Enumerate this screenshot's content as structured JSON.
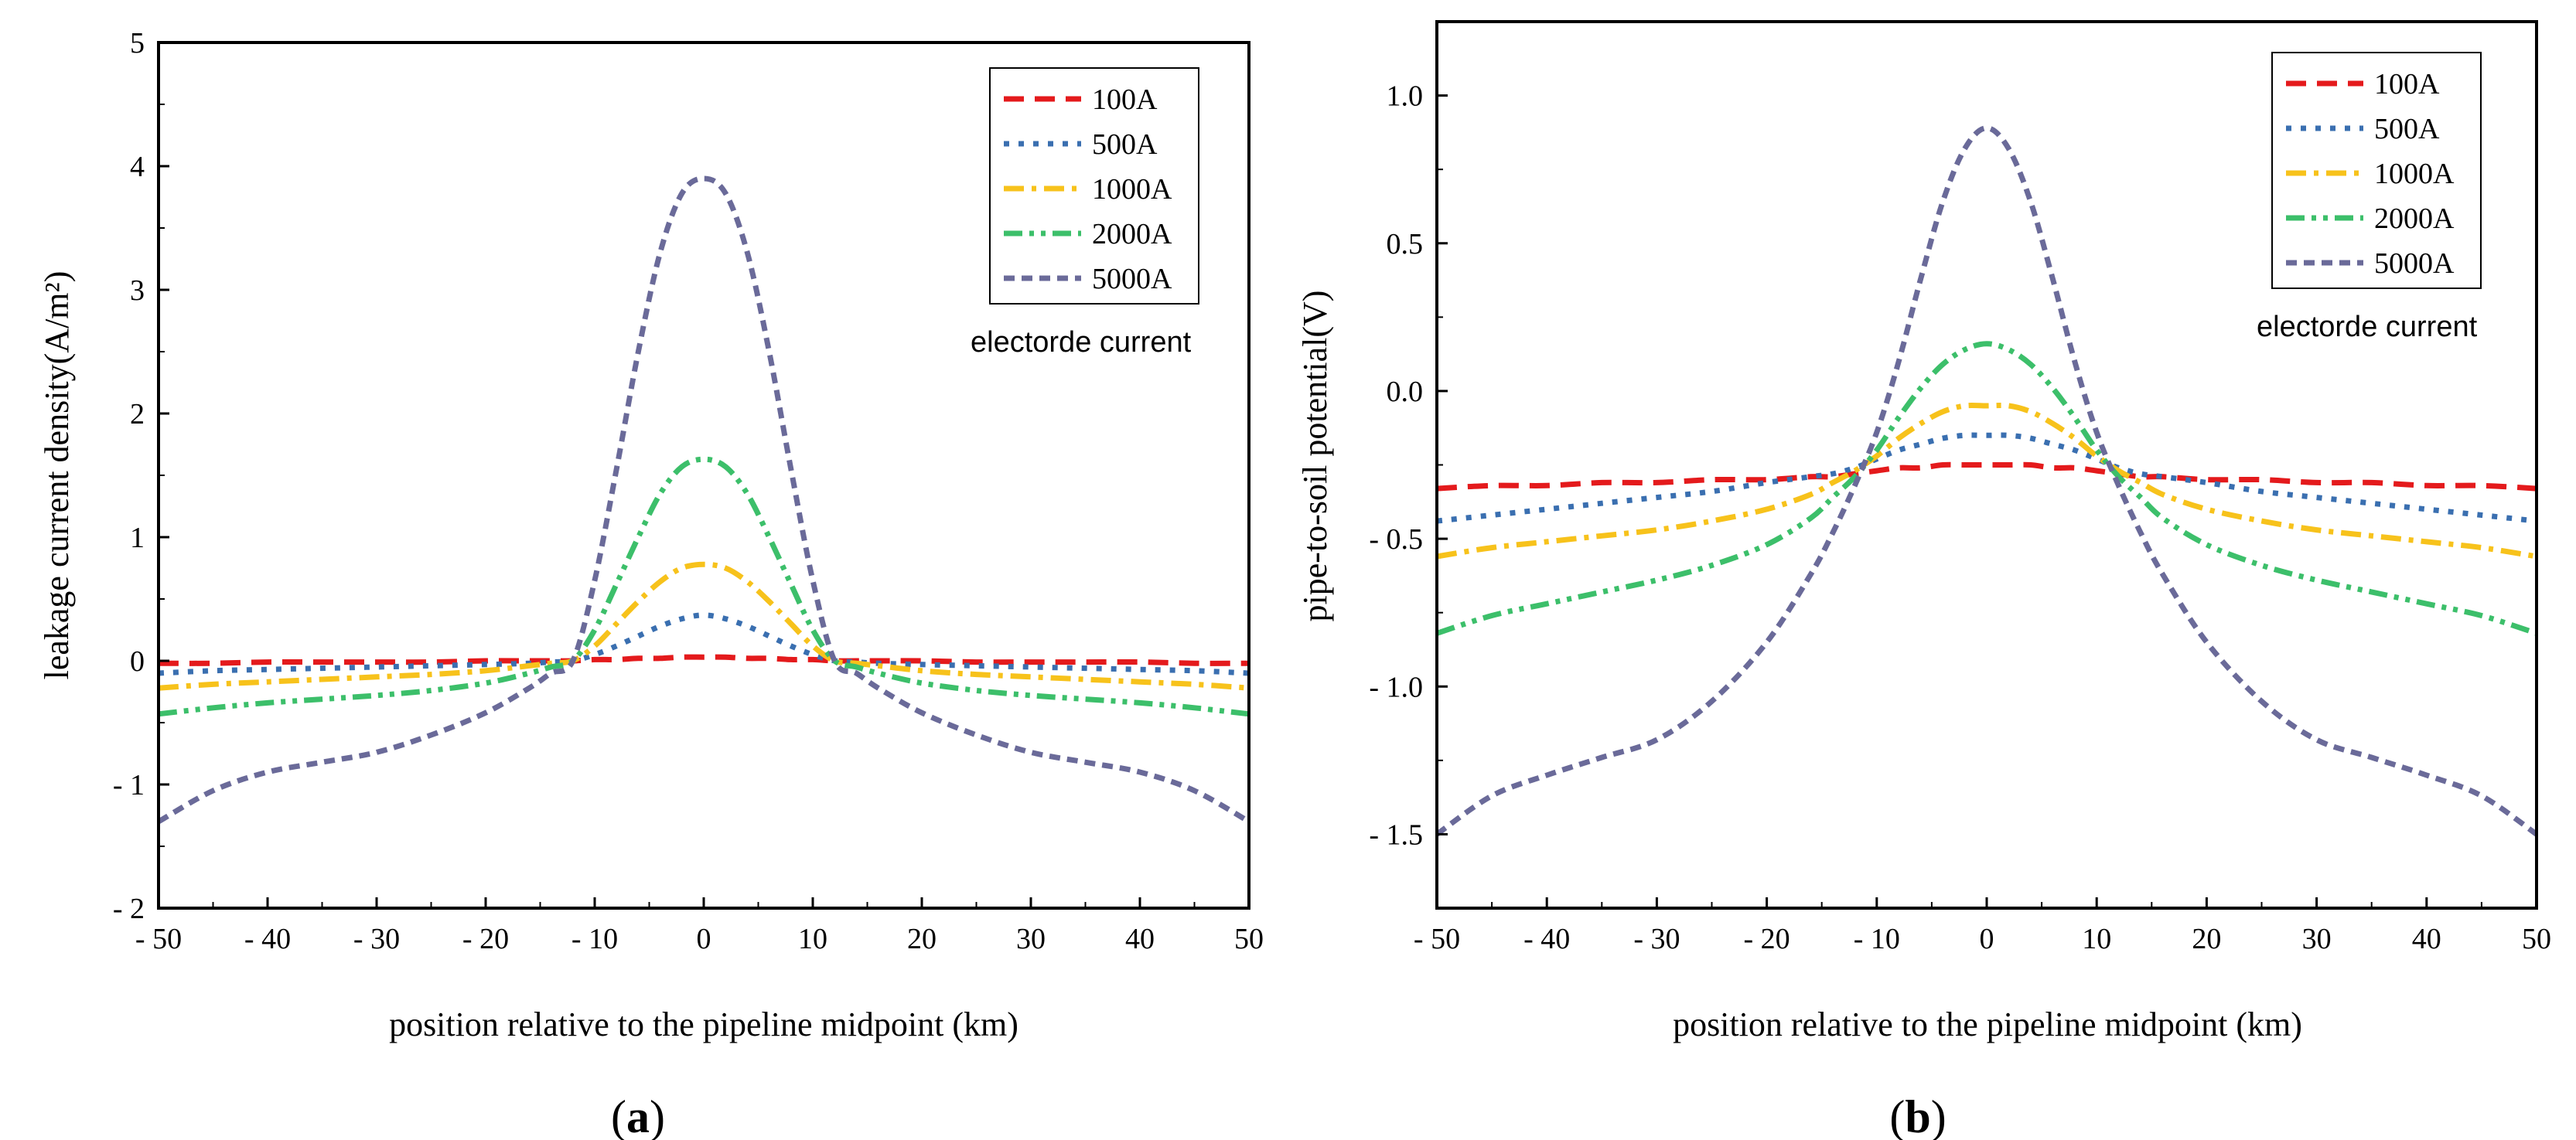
{
  "chart_data": [
    {
      "type": "line",
      "panel_label": "a",
      "xlabel": "position relative to the pipeline midpoint (km)",
      "ylabel": "leakage current density(A/m²)",
      "xlim": [
        -50,
        50
      ],
      "ylim": [
        -2,
        5
      ],
      "xticks": [
        -50,
        -40,
        -30,
        -20,
        -10,
        0,
        10,
        20,
        30,
        40,
        50
      ],
      "xtick_labels": [
        "- 50",
        "- 40",
        "- 30",
        "- 20",
        "- 10",
        "0",
        "10",
        "20",
        "30",
        "40",
        "50"
      ],
      "yticks": [
        -2,
        -1,
        0,
        1,
        2,
        3,
        4,
        5
      ],
      "ytick_labels": [
        "- 2",
        "- 1",
        "0",
        "1",
        "2",
        "3",
        "4",
        "5"
      ],
      "legend_note": "electorde current",
      "x": [
        -50,
        -45,
        -40,
        -35,
        -30,
        -25,
        -20,
        -16,
        -14,
        -12,
        -10,
        -8,
        -6,
        -4,
        -2,
        0,
        2,
        4,
        6,
        8,
        10,
        12,
        14,
        16,
        20,
        25,
        30,
        35,
        40,
        45,
        50
      ],
      "series": [
        {
          "name": "100A",
          "color": "#e41a1c",
          "dash": "dash",
          "values": [
            -0.02,
            -0.02,
            -0.01,
            -0.01,
            -0.01,
            -0.01,
            0.0,
            0.0,
            0.0,
            0.0,
            0.01,
            0.01,
            0.02,
            0.02,
            0.03,
            0.03,
            0.03,
            0.02,
            0.02,
            0.01,
            0.01,
            0.0,
            0.0,
            0.0,
            0.0,
            -0.01,
            -0.01,
            -0.01,
            -0.01,
            -0.02,
            -0.02
          ]
        },
        {
          "name": "500A",
          "color": "#3a6fb0",
          "dash": "dot",
          "values": [
            -0.1,
            -0.08,
            -0.07,
            -0.06,
            -0.05,
            -0.04,
            -0.03,
            -0.02,
            -0.01,
            0.0,
            0.05,
            0.12,
            0.2,
            0.28,
            0.34,
            0.37,
            0.34,
            0.28,
            0.2,
            0.12,
            0.05,
            0.0,
            -0.01,
            -0.02,
            -0.03,
            -0.04,
            -0.05,
            -0.06,
            -0.07,
            -0.08,
            -0.1
          ]
        },
        {
          "name": "1000A",
          "color": "#f7c21b",
          "dash": "dashdot",
          "values": [
            -0.22,
            -0.19,
            -0.17,
            -0.15,
            -0.13,
            -0.11,
            -0.08,
            -0.04,
            -0.02,
            0.0,
            0.12,
            0.3,
            0.48,
            0.64,
            0.75,
            0.78,
            0.75,
            0.64,
            0.48,
            0.3,
            0.12,
            0.0,
            -0.02,
            -0.04,
            -0.08,
            -0.11,
            -0.13,
            -0.15,
            -0.17,
            -0.19,
            -0.22
          ]
        },
        {
          "name": "2000A",
          "color": "#3cbf6a",
          "dash": "dashdotdot",
          "values": [
            -0.43,
            -0.38,
            -0.34,
            -0.31,
            -0.28,
            -0.24,
            -0.18,
            -0.1,
            -0.05,
            0.0,
            0.25,
            0.62,
            1.0,
            1.35,
            1.57,
            1.63,
            1.57,
            1.35,
            1.0,
            0.62,
            0.25,
            0.0,
            -0.05,
            -0.1,
            -0.18,
            -0.24,
            -0.28,
            -0.31,
            -0.34,
            -0.38,
            -0.43
          ]
        },
        {
          "name": "5000A",
          "color": "#6a6a99",
          "dash": "shortdash",
          "values": [
            -1.3,
            -1.05,
            -0.9,
            -0.82,
            -0.74,
            -0.6,
            -0.42,
            -0.22,
            -0.1,
            0.0,
            0.65,
            1.55,
            2.5,
            3.3,
            3.78,
            3.9,
            3.78,
            3.3,
            2.5,
            1.55,
            0.65,
            0.0,
            -0.1,
            -0.22,
            -0.42,
            -0.6,
            -0.74,
            -0.82,
            -0.9,
            -1.05,
            -1.3
          ]
        }
      ]
    },
    {
      "type": "line",
      "panel_label": "b",
      "xlabel": "position relative to the pipeline midpoint (km)",
      "ylabel": "pipe-to-soil potential(V)",
      "xlim": [
        -50,
        50
      ],
      "ylim": [
        -1.75,
        1.25
      ],
      "xticks": [
        -50,
        -40,
        -30,
        -20,
        -10,
        0,
        10,
        20,
        30,
        40,
        50
      ],
      "xtick_labels": [
        "- 50",
        "- 40",
        "- 30",
        "- 20",
        "- 10",
        "0",
        "10",
        "20",
        "30",
        "40",
        "50"
      ],
      "yticks": [
        -1.5,
        -1.0,
        -0.5,
        0.0,
        0.5,
        1.0
      ],
      "ytick_labels": [
        "- 1.5",
        "- 1.0",
        "- 0.5",
        "0.0",
        "0.5",
        "1.0"
      ],
      "legend_note": "electorde current",
      "x": [
        -50,
        -45,
        -40,
        -35,
        -30,
        -25,
        -20,
        -16,
        -14,
        -12,
        -10,
        -8,
        -6,
        -4,
        -2,
        0,
        2,
        4,
        6,
        8,
        10,
        12,
        14,
        16,
        20,
        25,
        30,
        35,
        40,
        45,
        50
      ],
      "series": [
        {
          "name": "100A",
          "color": "#e41a1c",
          "dash": "dash",
          "values": [
            -0.33,
            -0.32,
            -0.32,
            -0.31,
            -0.31,
            -0.3,
            -0.3,
            -0.29,
            -0.29,
            -0.28,
            -0.27,
            -0.26,
            -0.26,
            -0.25,
            -0.25,
            -0.25,
            -0.25,
            -0.25,
            -0.26,
            -0.26,
            -0.27,
            -0.28,
            -0.29,
            -0.29,
            -0.3,
            -0.3,
            -0.31,
            -0.31,
            -0.32,
            -0.32,
            -0.33
          ]
        },
        {
          "name": "500A",
          "color": "#3a6fb0",
          "dash": "dot",
          "values": [
            -0.44,
            -0.42,
            -0.4,
            -0.38,
            -0.36,
            -0.34,
            -0.31,
            -0.29,
            -0.28,
            -0.26,
            -0.23,
            -0.2,
            -0.18,
            -0.16,
            -0.15,
            -0.15,
            -0.15,
            -0.16,
            -0.18,
            -0.2,
            -0.23,
            -0.26,
            -0.28,
            -0.29,
            -0.31,
            -0.34,
            -0.36,
            -0.38,
            -0.4,
            -0.42,
            -0.44
          ]
        },
        {
          "name": "1000A",
          "color": "#f7c21b",
          "dash": "dashdot",
          "values": [
            -0.56,
            -0.53,
            -0.51,
            -0.49,
            -0.47,
            -0.44,
            -0.4,
            -0.35,
            -0.31,
            -0.27,
            -0.22,
            -0.16,
            -0.11,
            -0.07,
            -0.05,
            -0.05,
            -0.05,
            -0.07,
            -0.11,
            -0.16,
            -0.22,
            -0.27,
            -0.31,
            -0.35,
            -0.4,
            -0.44,
            -0.47,
            -0.49,
            -0.51,
            -0.53,
            -0.56
          ]
        },
        {
          "name": "2000A",
          "color": "#3cbf6a",
          "dash": "dashdotdot",
          "values": [
            -0.82,
            -0.76,
            -0.72,
            -0.68,
            -0.64,
            -0.59,
            -0.52,
            -0.43,
            -0.36,
            -0.29,
            -0.2,
            -0.09,
            0.01,
            0.09,
            0.14,
            0.16,
            0.14,
            0.09,
            0.01,
            -0.09,
            -0.2,
            -0.29,
            -0.36,
            -0.43,
            -0.52,
            -0.59,
            -0.64,
            -0.68,
            -0.72,
            -0.76,
            -0.82
          ]
        },
        {
          "name": "5000A",
          "color": "#6a6a99",
          "dash": "shortdash",
          "values": [
            -1.5,
            -1.37,
            -1.3,
            -1.24,
            -1.18,
            -1.05,
            -0.85,
            -0.62,
            -0.48,
            -0.32,
            -0.14,
            0.1,
            0.38,
            0.64,
            0.82,
            0.89,
            0.82,
            0.64,
            0.38,
            0.1,
            -0.14,
            -0.32,
            -0.48,
            -0.62,
            -0.85,
            -1.05,
            -1.18,
            -1.24,
            -1.3,
            -1.37,
            -1.5
          ]
        }
      ]
    }
  ]
}
